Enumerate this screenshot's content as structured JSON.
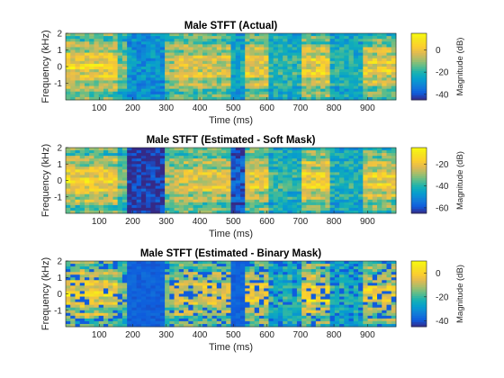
{
  "chart_data": [
    {
      "type": "heatmap",
      "title": "Male STFT (Actual)",
      "xlabel": "Time (ms)",
      "ylabel": "Frequency (kHz)",
      "colorbar_label": "Magnitude (dB)",
      "x_range": [
        0,
        985
      ],
      "y_range": [
        -2,
        2
      ],
      "x_ticks": [
        100,
        200,
        300,
        400,
        500,
        600,
        700,
        800,
        900
      ],
      "y_ticks": [
        -1,
        0,
        1,
        2
      ],
      "color_range": [
        -45,
        15
      ],
      "colorbar_ticks": [
        0,
        -20,
        -40
      ],
      "pattern": "actual",
      "colormap": "parula"
    },
    {
      "type": "heatmap",
      "title": "Male STFT (Estimated - Soft Mask)",
      "xlabel": "Time (ms)",
      "ylabel": "Frequency (kHz)",
      "colorbar_label": "Magnitude (dB)",
      "x_range": [
        0,
        985
      ],
      "y_range": [
        -2,
        2
      ],
      "x_ticks": [
        100,
        200,
        300,
        400,
        500,
        600,
        700,
        800,
        900
      ],
      "y_ticks": [
        -1,
        0,
        1,
        2
      ],
      "color_range": [
        -65,
        -5
      ],
      "colorbar_ticks": [
        -20,
        -40,
        -60
      ],
      "pattern": "soft",
      "colormap": "parula"
    },
    {
      "type": "heatmap",
      "title": "Male STFT (Estimated - Binary Mask)",
      "xlabel": "Time (ms)",
      "ylabel": "Frequency (kHz)",
      "colorbar_label": "Magnitude (dB)",
      "x_range": [
        0,
        985
      ],
      "y_range": [
        -2,
        2
      ],
      "x_ticks": [
        100,
        200,
        300,
        400,
        500,
        600,
        700,
        800,
        900
      ],
      "y_ticks": [
        -1,
        0,
        1,
        2
      ],
      "color_range": [
        -45,
        10
      ],
      "colorbar_ticks": [
        0,
        -20,
        -40
      ],
      "pattern": "binary",
      "colormap": "parula"
    }
  ]
}
